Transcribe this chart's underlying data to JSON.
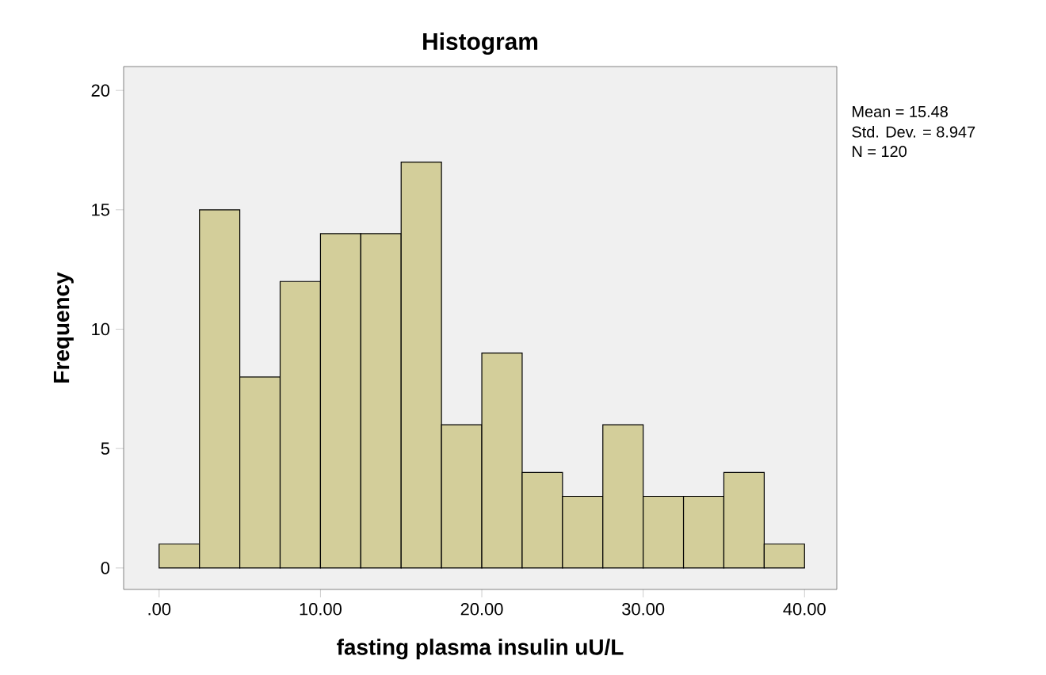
{
  "chart_data": {
    "type": "histogram",
    "title": "Histogram",
    "xlabel": "fasting plasma insulin uU/L",
    "ylabel": "Frequency",
    "bins": [
      0,
      2.5,
      5,
      7.5,
      10,
      12.5,
      15,
      17.5,
      20,
      22.5,
      25,
      27.5,
      30,
      32.5,
      35,
      37.5,
      40
    ],
    "values": [
      1,
      15,
      8,
      12,
      14,
      14,
      17,
      6,
      9,
      4,
      3,
      6,
      3,
      3,
      4,
      1
    ],
    "color": "#d3ce9a",
    "xlim": [
      -2.2,
      42
    ],
    "ylim": [
      -0.9,
      21
    ],
    "xticks": [
      {
        "value": 0,
        "label": ".00"
      },
      {
        "value": 10,
        "label": "10.00"
      },
      {
        "value": 20,
        "label": "20.00"
      },
      {
        "value": 30,
        "label": "30.00"
      },
      {
        "value": 40,
        "label": "40.00"
      }
    ],
    "yticks": [
      0,
      5,
      10,
      15,
      20
    ],
    "grid": false,
    "annotations": [
      "Mean = 15.48",
      "Std. Dev. = 8.947",
      "N = 120"
    ]
  }
}
